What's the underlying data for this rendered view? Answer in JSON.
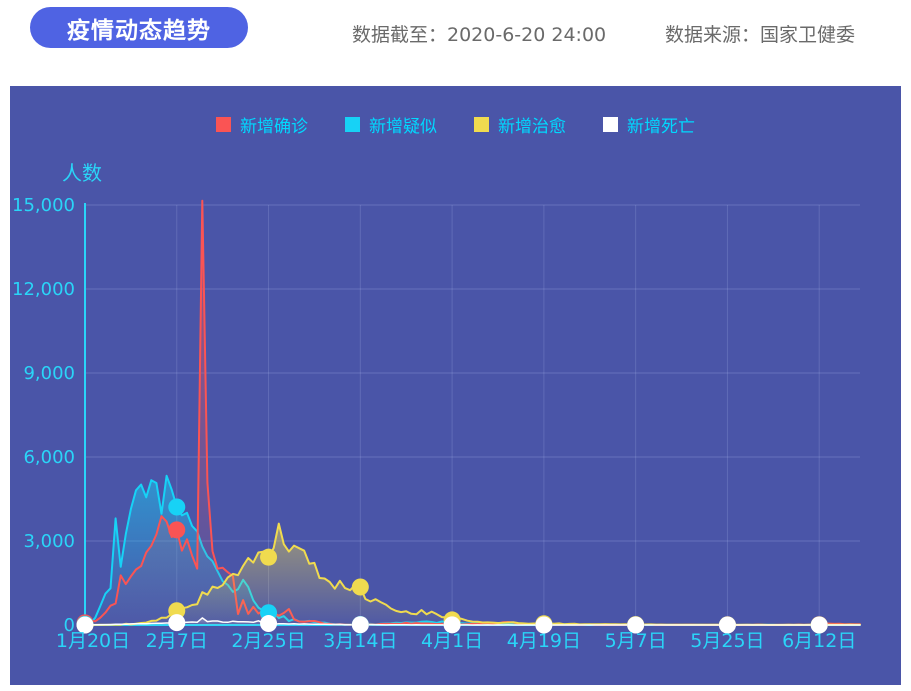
{
  "header": {
    "title_badge": "疫情动态趋势",
    "data_until": "数据截至：2020-6-20 24:00",
    "data_source": "数据来源：国家卫健委"
  },
  "colors": {
    "badge_bg": "#4F63E3",
    "header_text": "#6A6A6A",
    "panel_bg": "#4A55A8",
    "axis_cyan": "#2AD5F8",
    "tick_label_cyan": "#2AD5F8",
    "legend_label_cyan": "#00D9FF",
    "grid_line": "rgba(200,212,255,0.22)",
    "series_confirmed": "#FA5454",
    "series_suspected": "#17D2F6",
    "series_cured": "#F0DB4F",
    "series_deaths": "#FFFFFF"
  },
  "chart_data": {
    "type": "line",
    "title": "疫情动态趋势",
    "xlabel": "",
    "ylabel": "人数",
    "ylim": [
      0,
      15000
    ],
    "grid": true,
    "legend_position": "top",
    "days_total": 153,
    "x_start": "1月20日",
    "x_end": "6月20日",
    "x_tick_days": [
      0,
      18,
      36,
      54,
      72,
      90,
      108,
      126,
      144
    ],
    "x_tick_labels": [
      "1月20日",
      "2月7日",
      "2月25日",
      "3月14日",
      "4月1日",
      "4月19日",
      "5月7日",
      "5月25日",
      "6月12日"
    ],
    "y_ticks": [
      0,
      3000,
      6000,
      9000,
      12000,
      15000
    ],
    "y_tick_labels": [
      "0",
      "3,000",
      "6,000",
      "9,000",
      "12,000",
      "15,000"
    ],
    "marker_days": [
      0,
      18,
      36,
      54,
      72,
      90,
      108,
      126,
      144
    ],
    "series": [
      {
        "key": "confirmed",
        "name": "新增确诊",
        "color": "#FA5454",
        "values": [
          77,
          149,
          131,
          259,
          444,
          688,
          769,
          1771,
          1459,
          1737,
          1982,
          2102,
          2590,
          2829,
          3235,
          3887,
          3694,
          3143,
          3399,
          2656,
          3062,
          2478,
          2015,
          15152,
          5090,
          2641,
          2009,
          2048,
          1886,
          1749,
          394,
          889,
          397,
          648,
          409,
          508,
          406,
          433,
          327,
          427,
          573,
          202,
          125,
          119,
          139,
          143,
          99,
          44,
          40,
          19,
          24,
          15,
          8,
          11,
          20,
          16,
          21,
          13,
          34,
          39,
          41,
          46,
          39,
          78,
          47,
          67,
          55,
          54,
          45,
          31,
          48,
          36,
          35,
          31,
          19,
          30,
          39,
          32,
          62,
          63,
          42,
          46,
          99,
          108,
          89,
          46,
          46,
          26,
          27,
          16,
          12,
          30,
          10,
          10,
          6,
          12,
          11,
          3,
          6,
          22,
          4,
          12,
          1,
          2,
          2,
          3,
          2,
          2,
          1,
          1,
          14,
          17,
          1,
          7,
          3,
          4,
          8,
          5,
          7,
          6,
          5,
          2,
          4,
          4,
          3,
          11,
          7,
          1,
          2,
          0,
          4,
          2,
          16,
          5,
          1,
          1,
          4,
          3,
          6,
          4,
          14,
          3,
          11,
          7,
          11,
          57,
          49,
          40,
          44,
          28,
          32,
          27,
          26
        ]
      },
      {
        "key": "suspected",
        "name": "新增疑似",
        "color": "#17D2F6",
        "values": [
          27,
          53,
          257,
          680,
          1118,
          1309,
          3806,
          2077,
          3248,
          4148,
          4812,
          5019,
          4562,
          5173,
          5072,
          3971,
          5328,
          4833,
          4214,
          3916,
          4008,
          3536,
          3342,
          2807,
          2450,
          2277,
          1918,
          1563,
          1432,
          1185,
          1277,
          1614,
          1361,
          882,
          620,
          508,
          439,
          452,
          248,
          318,
          141,
          206,
          129,
          124,
          146,
          102,
          87,
          84,
          45,
          33,
          29,
          23,
          18,
          17,
          16,
          26,
          39,
          21,
          43,
          52,
          58,
          79,
          70,
          94,
          87,
          86,
          113,
          126,
          106,
          72,
          125,
          101,
          75,
          69,
          66,
          49,
          60,
          54,
          52,
          36,
          35,
          42,
          37,
          29,
          34,
          31,
          39,
          31,
          29,
          36,
          30,
          25,
          24,
          26,
          32,
          26,
          16,
          11,
          17,
          9,
          12,
          7,
          5,
          2,
          4,
          3,
          5,
          2,
          3,
          1,
          2,
          4,
          1,
          2,
          3,
          2,
          1,
          2,
          4,
          2,
          3,
          2,
          1,
          2,
          3,
          2,
          4,
          1,
          2,
          1,
          3,
          2,
          5,
          4,
          2,
          3,
          1,
          2,
          4,
          2,
          3,
          1,
          2,
          5,
          3,
          8,
          4,
          6,
          3,
          2,
          4,
          3,
          2
        ]
      },
      {
        "key": "cured",
        "name": "新增治愈",
        "color": "#F0DB4F",
        "values": [
          0,
          0,
          3,
          6,
          3,
          11,
          9,
          12,
          43,
          21,
          47,
          72,
          85,
          147,
          157,
          262,
          261,
          387,
          510,
          600,
          632,
          716,
          744,
          1171,
          1081,
          1373,
          1323,
          1425,
          1701,
          1824,
          1779,
          2109,
          2393,
          2230,
          2589,
          2620,
          2422,
          2750,
          3622,
          2885,
          2623,
          2837,
          2742,
          2652,
          2189,
          2219,
          1678,
          1661,
          1535,
          1297,
          1578,
          1318,
          1244,
          1430,
          1357,
          930,
          838,
          921,
          819,
          730,
          590,
          504,
          459,
          491,
          401,
          381,
          537,
          383,
          477,
          386,
          282,
          268,
          181,
          266,
          212,
          154,
          122,
          118,
          89,
          92,
          86,
          73,
          77,
          88,
          97,
          68,
          57,
          46,
          53,
          51,
          44,
          58,
          46,
          56,
          29,
          38,
          42,
          23,
          30,
          29,
          27,
          29,
          33,
          28,
          27,
          20,
          26,
          16,
          15,
          25,
          19,
          23,
          16,
          14,
          12,
          9,
          11,
          8,
          12,
          9,
          7,
          11,
          9,
          8,
          7,
          9,
          6,
          8,
          5,
          7,
          6,
          4,
          8,
          6,
          3,
          5,
          2,
          4,
          7,
          5,
          9,
          4,
          6,
          8,
          5,
          6,
          10,
          8,
          12,
          9,
          13,
          10,
          9
        ]
      },
      {
        "key": "deaths",
        "name": "新增死亡",
        "color": "#FFFFFF",
        "values": [
          0,
          3,
          8,
          8,
          16,
          15,
          24,
          26,
          26,
          38,
          43,
          46,
          45,
          57,
          64,
          65,
          73,
          73,
          86,
          89,
          97,
          108,
          97,
          254,
          121,
          143,
          142,
          105,
          98,
          136,
          114,
          118,
          109,
          97,
          150,
          71,
          52,
          29,
          44,
          47,
          35,
          42,
          31,
          38,
          31,
          30,
          28,
          27,
          22,
          17,
          22,
          11,
          7,
          13,
          10,
          14,
          13,
          11,
          8,
          3,
          7,
          6,
          9,
          7,
          4,
          6,
          5,
          3,
          5,
          4,
          2,
          1,
          6,
          4,
          4,
          3,
          1,
          2,
          0,
          2,
          1,
          3,
          0,
          2,
          1,
          0,
          0,
          0,
          0,
          0,
          0,
          1,
          0,
          0,
          0,
          0,
          0,
          1,
          0,
          0,
          0,
          0,
          0,
          0,
          0,
          0,
          0,
          0,
          0,
          0,
          0,
          0,
          0,
          0,
          0,
          0,
          0,
          0,
          0,
          0,
          0,
          0,
          0,
          0,
          0,
          0,
          0,
          0,
          0,
          0,
          0,
          0,
          0,
          0,
          0,
          0,
          0,
          0,
          0,
          0,
          0,
          0,
          0,
          0,
          0,
          0,
          0,
          0,
          0,
          0,
          0,
          0,
          0
        ]
      }
    ]
  }
}
